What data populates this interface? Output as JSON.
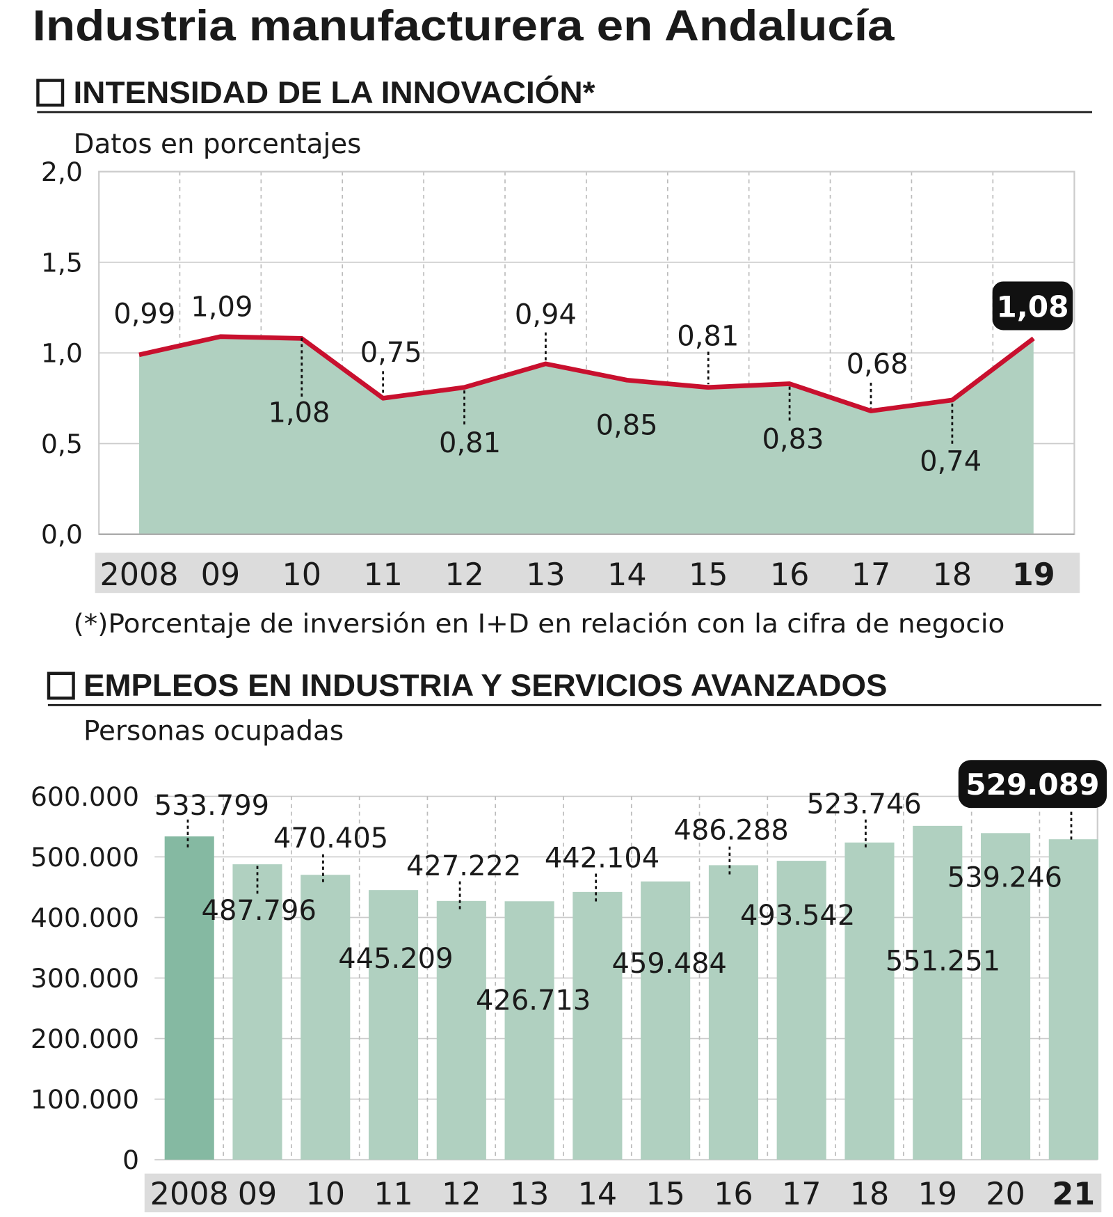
{
  "title": "Industria manufacturera en Andalucía",
  "colors": {
    "area": "#b0d0c0",
    "line": "#c8102e",
    "bar": "#b0d0c0",
    "bar_first": "#85b9a2",
    "badge": "#111111",
    "year_band": "#dcdcdc"
  },
  "chart_data": [
    {
      "type": "area",
      "section_title": "INTENSIDAD DE LA INNOVACIÓN*",
      "subtitle": "Datos en porcentajes",
      "footnote": "(*)Porcentaje de inversión en I+D en relación con la cifra de negocio",
      "categories": [
        "2008",
        "09",
        "10",
        "11",
        "12",
        "13",
        "14",
        "15",
        "16",
        "17",
        "18",
        "19"
      ],
      "values": [
        0.99,
        1.09,
        1.08,
        0.75,
        0.81,
        0.94,
        0.85,
        0.81,
        0.83,
        0.68,
        0.74,
        1.08
      ],
      "labels": [
        "0,99",
        "1,09",
        "1,08",
        "0,75",
        "0,81",
        "0,94",
        "0,85",
        "0,81",
        "0,83",
        "0,68",
        "0,74",
        "1,08"
      ],
      "ylim": [
        0,
        2
      ],
      "yticks": [
        "0,0",
        "0,5",
        "1,0",
        "1,5",
        "2,0"
      ],
      "grid": true
    },
    {
      "type": "bar",
      "section_title": "EMPLEOS EN INDUSTRIA Y SERVICIOS AVANZADOS",
      "subtitle": "Personas ocupadas",
      "categories": [
        "2008",
        "09",
        "10",
        "11",
        "12",
        "13",
        "14",
        "15",
        "16",
        "17",
        "18",
        "19",
        "20",
        "21"
      ],
      "values": [
        533799,
        487796,
        470405,
        445209,
        427222,
        426713,
        442104,
        459484,
        486288,
        493542,
        523746,
        551251,
        539246,
        529089
      ],
      "labels": [
        "533.799",
        "487.796",
        "470.405",
        "445.209",
        "427.222",
        "426.713",
        "442.104",
        "459.484",
        "486.288",
        "493.542",
        "523.746",
        "551.251",
        "539.246",
        "529.089"
      ],
      "ylim": [
        0,
        600000
      ],
      "yticks": [
        "0",
        "100.000",
        "200.000",
        "300.000",
        "400.000",
        "500.000",
        "600.000"
      ],
      "grid": true
    }
  ]
}
